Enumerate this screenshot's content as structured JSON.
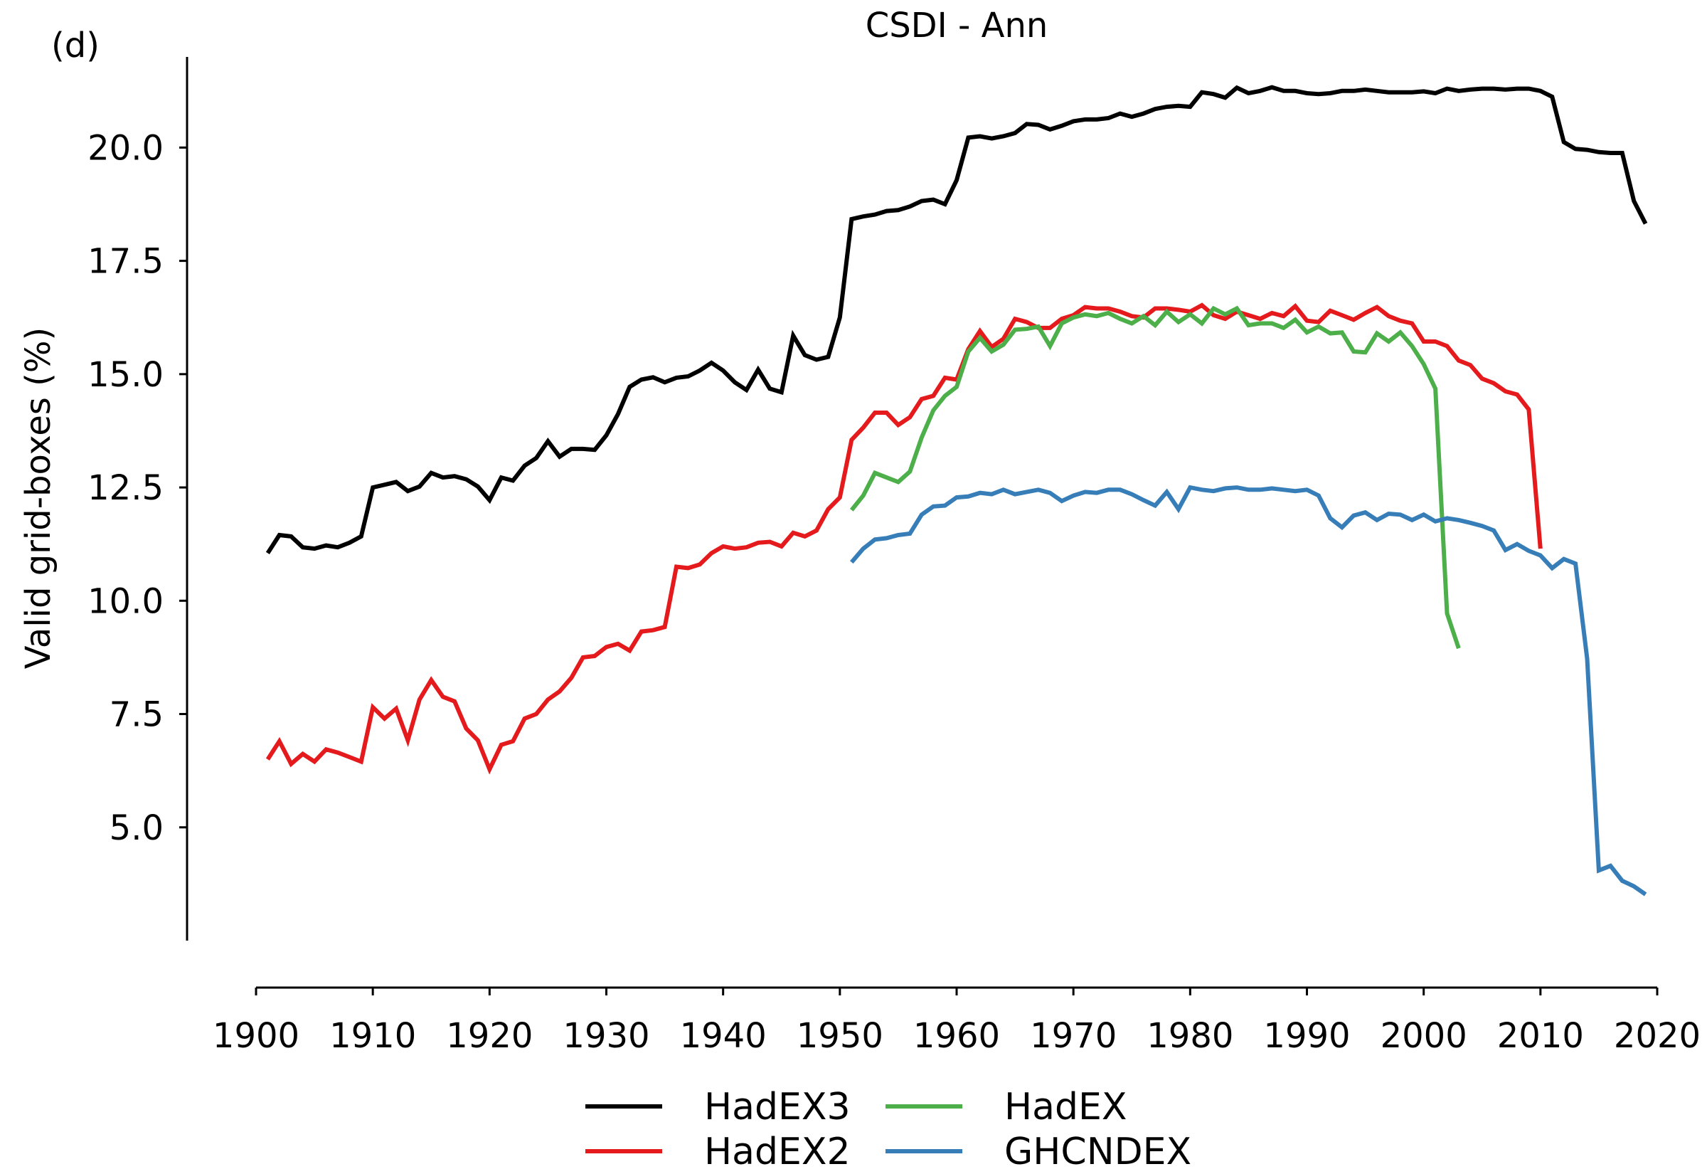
{
  "panel_label": "(d)",
  "chart_data": {
    "type": "line",
    "title": "CSDI - Ann",
    "xlabel": "",
    "ylabel": "Valid grid-boxes (%)",
    "xlim": [
      1900,
      2020
    ],
    "ylim": [
      2.5,
      22.0
    ],
    "x_ticks": [
      1900,
      1910,
      1920,
      1930,
      1940,
      1950,
      1960,
      1970,
      1980,
      1990,
      2000,
      2010,
      2020
    ],
    "y_ticks": [
      5.0,
      7.5,
      10.0,
      12.5,
      15.0,
      17.5,
      20.0
    ],
    "y_tick_labels": [
      "5.0",
      "7.5",
      "10.0",
      "12.5",
      "15.0",
      "17.5",
      "20.0"
    ],
    "grid": false,
    "legend_position": "bottom",
    "series": [
      {
        "name": "HadEX3",
        "color": "#000000",
        "start_year": 1901,
        "values": [
          11.05,
          11.45,
          11.42,
          11.18,
          11.15,
          11.22,
          11.18,
          11.28,
          11.42,
          12.5,
          12.56,
          12.62,
          12.42,
          12.52,
          12.82,
          12.72,
          12.75,
          12.68,
          12.52,
          12.22,
          12.72,
          12.65,
          12.98,
          13.15,
          13.52,
          13.18,
          13.35,
          13.35,
          13.33,
          13.65,
          14.12,
          14.72,
          14.88,
          14.93,
          14.82,
          14.92,
          14.95,
          15.08,
          15.25,
          15.08,
          14.82,
          14.65,
          15.1,
          14.68,
          14.6,
          15.85,
          15.42,
          15.32,
          15.38,
          16.25,
          18.42,
          18.48,
          18.52,
          18.6,
          18.62,
          18.7,
          18.82,
          18.85,
          18.75,
          19.28,
          20.22,
          20.25,
          20.2,
          20.25,
          20.32,
          20.52,
          20.5,
          20.4,
          20.48,
          20.58,
          20.62,
          20.62,
          20.65,
          20.75,
          20.68,
          20.75,
          20.85,
          20.9,
          20.92,
          20.9,
          21.22,
          21.18,
          21.1,
          21.32,
          21.2,
          21.25,
          21.33,
          21.25,
          21.25,
          21.2,
          21.18,
          21.2,
          21.25,
          21.25,
          21.28,
          21.25,
          21.22,
          21.22,
          21.22,
          21.24,
          21.2,
          21.3,
          21.25,
          21.28,
          21.3,
          21.3,
          21.28,
          21.3,
          21.3,
          21.25,
          21.12,
          20.12,
          19.97,
          19.95,
          19.9,
          19.88,
          19.88,
          18.82,
          18.32
        ]
      },
      {
        "name": "HadEX2",
        "color": "#e41a1c",
        "start_year": 1901,
        "values": [
          6.5,
          6.9,
          6.4,
          6.62,
          6.45,
          6.72,
          6.65,
          6.55,
          6.45,
          7.65,
          7.4,
          7.62,
          6.92,
          7.82,
          8.25,
          7.88,
          7.78,
          7.18,
          6.92,
          6.28,
          6.82,
          6.9,
          7.4,
          7.5,
          7.82,
          8.0,
          8.3,
          8.75,
          8.78,
          8.98,
          9.05,
          8.9,
          9.32,
          9.35,
          9.42,
          10.75,
          10.72,
          10.8,
          11.05,
          11.2,
          11.15,
          11.18,
          11.28,
          11.3,
          11.2,
          11.5,
          11.42,
          11.55,
          12.02,
          12.28,
          13.55,
          13.82,
          14.15,
          14.15,
          13.88,
          14.05,
          14.45,
          14.52,
          14.92,
          14.88,
          15.55,
          15.95,
          15.6,
          15.78,
          16.22,
          16.15,
          16.02,
          16.02,
          16.22,
          16.3,
          16.48,
          16.45,
          16.45,
          16.38,
          16.28,
          16.25,
          16.45,
          16.45,
          16.42,
          16.38,
          16.52,
          16.3,
          16.22,
          16.38,
          16.3,
          16.22,
          16.35,
          16.28,
          16.5,
          16.18,
          16.15,
          16.4,
          16.3,
          16.2,
          16.35,
          16.48,
          16.28,
          16.18,
          16.12,
          15.72,
          15.72,
          15.62,
          15.3,
          15.2,
          14.9,
          14.8,
          14.62,
          14.55,
          14.22,
          11.15
        ]
      },
      {
        "name": "HadEX",
        "color": "#4daf4a",
        "start_year": 1951,
        "values": [
          12.0,
          12.32,
          12.82,
          12.72,
          12.62,
          12.85,
          13.6,
          14.2,
          14.52,
          14.72,
          15.5,
          15.8,
          15.5,
          15.65,
          15.98,
          16.0,
          16.05,
          15.62,
          16.12,
          16.25,
          16.32,
          16.28,
          16.35,
          16.22,
          16.12,
          16.28,
          16.08,
          16.38,
          16.15,
          16.32,
          16.12,
          16.45,
          16.32,
          16.45,
          16.08,
          16.12,
          16.12,
          16.02,
          16.2,
          15.92,
          16.05,
          15.9,
          15.92,
          15.5,
          15.48,
          15.9,
          15.72,
          15.92,
          15.62,
          15.22,
          14.68,
          9.72,
          8.95
        ]
      },
      {
        "name": "GHCNDEX",
        "color": "#377eb8",
        "start_year": 1951,
        "values": [
          10.85,
          11.15,
          11.35,
          11.38,
          11.45,
          11.48,
          11.9,
          12.08,
          12.1,
          12.28,
          12.3,
          12.38,
          12.35,
          12.45,
          12.35,
          12.4,
          12.45,
          12.38,
          12.2,
          12.32,
          12.4,
          12.38,
          12.45,
          12.45,
          12.35,
          12.22,
          12.1,
          12.4,
          12.02,
          12.5,
          12.45,
          12.42,
          12.48,
          12.5,
          12.45,
          12.45,
          12.48,
          12.45,
          12.42,
          12.45,
          12.32,
          11.82,
          11.62,
          11.88,
          11.95,
          11.78,
          11.92,
          11.9,
          11.78,
          11.9,
          11.75,
          11.82,
          11.78,
          11.72,
          11.65,
          11.55,
          11.12,
          11.25,
          11.1,
          11.0,
          10.72,
          10.92,
          10.82,
          8.72,
          4.05,
          4.15,
          3.82,
          3.7,
          3.52
        ]
      }
    ]
  }
}
